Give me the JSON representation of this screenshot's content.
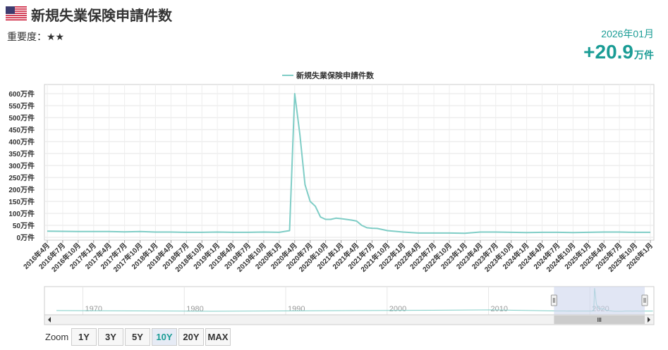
{
  "header": {
    "title": "新規失業保険申請件数",
    "importance": "重要度：★★",
    "period": "2026年01月",
    "value": "+20.9",
    "value_unit": "万件"
  },
  "colors": {
    "accent": "#1a9c95",
    "line": "#7fcdc6",
    "navigator_fill": "#cdd6ec"
  },
  "chart_data": {
    "type": "line",
    "series": [
      {
        "name": "新規失業保険申請件数",
        "x": [
          "2016-04",
          "2016-07",
          "2016-10",
          "2017-01",
          "2017-04",
          "2017-07",
          "2017-10",
          "2018-01",
          "2018-04",
          "2018-07",
          "2018-10",
          "2019-01",
          "2019-04",
          "2019-07",
          "2019-10",
          "2020-01",
          "2020-03",
          "2020-04",
          "2020-05",
          "2020-06",
          "2020-07",
          "2020-08",
          "2020-09",
          "2020-10",
          "2020-11",
          "2020-12",
          "2021-01",
          "2021-02",
          "2021-03",
          "2021-04",
          "2021-05",
          "2021-06",
          "2021-07",
          "2021-08",
          "2021-10",
          "2022-01",
          "2022-04",
          "2022-07",
          "2022-10",
          "2023-01",
          "2023-04",
          "2023-07",
          "2023-10",
          "2024-01",
          "2024-04",
          "2024-07",
          "2024-10",
          "2025-01",
          "2025-04",
          "2025-07",
          "2025-10",
          "2026-01"
        ],
        "values": [
          26,
          25,
          24,
          24,
          24,
          23,
          24,
          22,
          22,
          21,
          21,
          22,
          21,
          21,
          22,
          21,
          28,
          600,
          430,
          220,
          150,
          130,
          85,
          75,
          75,
          80,
          78,
          75,
          72,
          68,
          50,
          40,
          38,
          37,
          28,
          22,
          18,
          18,
          18,
          17,
          22,
          22,
          21,
          20,
          21,
          21,
          20,
          21,
          22,
          22,
          21,
          21
        ]
      }
    ],
    "ylabel_unit": "万件",
    "ylim": [
      0,
      600
    ],
    "yticks": [
      "0万件",
      "50万件",
      "100万件",
      "150万件",
      "200万件",
      "250万件",
      "300万件",
      "350万件",
      "400万件",
      "450万件",
      "500万件",
      "550万件",
      "600万件"
    ],
    "xticks": [
      "2016年4月",
      "2016年7月",
      "2016年10月",
      "2017年1月",
      "2017年4月",
      "2017年7月",
      "2017年10月",
      "2018年1月",
      "2018年4月",
      "2018年7月",
      "2018年10月",
      "2019年1月",
      "2019年4月",
      "2019年7月",
      "2019年10月",
      "2020年1月",
      "2020年4月",
      "2020年7月",
      "2020年10月",
      "2021年1月",
      "2021年4月",
      "2021年7月",
      "2021年10月",
      "2022年1月",
      "2022年4月",
      "2022年7月",
      "2022年10月",
      "2023年1月",
      "2023年4月",
      "2023年7月",
      "2023年10月",
      "2024年1月",
      "2024年4月",
      "2024年7月",
      "2024年10月",
      "2025年1月",
      "2025年4月",
      "2025年7月",
      "2025年10月",
      "2026年1月"
    ],
    "grid": true,
    "legend": "top-center",
    "navigator": {
      "years": [
        "1970",
        "1980",
        "1990",
        "2000",
        "2010",
        "2020"
      ]
    }
  },
  "zoom": {
    "label": "Zoom",
    "buttons": [
      "1Y",
      "3Y",
      "5Y",
      "10Y",
      "20Y",
      "MAX"
    ],
    "active": "10Y"
  },
  "icons": {
    "flag": "us-flag-icon",
    "scroll_grip": "grip-icon",
    "scroll_left": "arrow-left-icon",
    "scroll_right": "arrow-right-icon"
  }
}
